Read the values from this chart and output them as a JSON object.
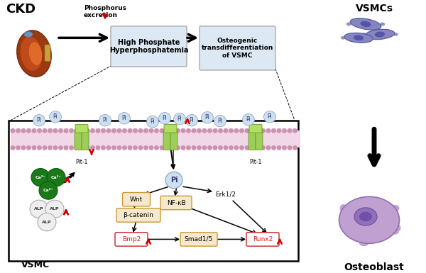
{
  "bg_color": "#ffffff",
  "top_box1_text": "High Phosphate\nHyperphosphatemia",
  "top_box2_text": "Osteogenic\ntransdifferentiation\nof VSMC",
  "box_bg": "#dce9f5",
  "box_border": "#aaaaaa",
  "ckd_text": "CKD",
  "phosphorus_text": "Phosphorus\nexcretion",
  "vsmcs_text": "VSMCs",
  "osteoblast_text": "Osteoblast",
  "vsmc_label": "VSMC",
  "red_arrow": "#cc0000",
  "bmp2_runx2_color": "#cc2222",
  "node_bg": "#f5e8cc",
  "node_border": "#cc9933"
}
